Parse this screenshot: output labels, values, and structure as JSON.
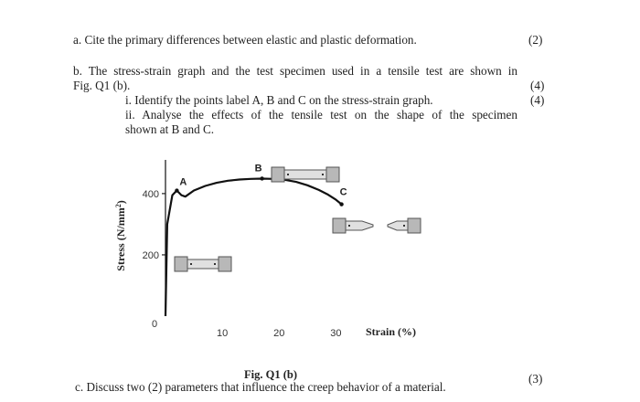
{
  "question": {
    "a": {
      "text": "a. Cite the primary differences between elastic and plastic deformation.",
      "marks": "(2)"
    },
    "b": {
      "line1": "b. The stress-strain graph and the test specimen used in a tensile test are shown in",
      "line2": "Fig. Q1 (b).",
      "i": {
        "text": "i. Identify the points label A, B and C on the stress-strain graph.",
        "marks": "(4)"
      },
      "ii": {
        "line1": "ii. Analyse the effects of the tensile test on the shape of the specimen",
        "line2": "shown at B and C.",
        "marks": "(4)"
      }
    },
    "c": {
      "text": "c. Discuss two (2) parameters that influence the creep behavior of a material.",
      "marks": "(3)"
    }
  },
  "figure": {
    "caption": "Fig. Q1 (b)"
  },
  "chart_data": {
    "type": "line",
    "ylabel_main": "Stress (N/mm",
    "ylabel_sup": "2",
    "ylabel_end": ")",
    "xlabel": "Strain (%)",
    "xlim": [
      0,
      33
    ],
    "ylim": [
      0,
      510
    ],
    "x_ticks": [
      10,
      20,
      30
    ],
    "y_ticks": [
      200,
      400
    ],
    "origin_label": "0",
    "grid": false,
    "series": [
      {
        "x": [
          0,
          0.3,
          1.2,
          2,
          2.8,
          3.5,
          5,
          7,
          9,
          11,
          13,
          15,
          17,
          19,
          21,
          23,
          25,
          27,
          28.5,
          30,
          31
        ],
        "y": [
          0,
          300,
          395,
          410,
          395,
          390,
          410,
          425,
          435,
          442,
          446,
          448,
          449,
          448,
          445,
          438,
          427,
          412,
          398,
          380,
          365
        ]
      }
    ],
    "points": [
      {
        "label": "A",
        "x": 2,
        "y": 410
      },
      {
        "label": "B",
        "x": 17,
        "y": 449
      },
      {
        "label": "C",
        "x": 31,
        "y": 365
      }
    ]
  }
}
